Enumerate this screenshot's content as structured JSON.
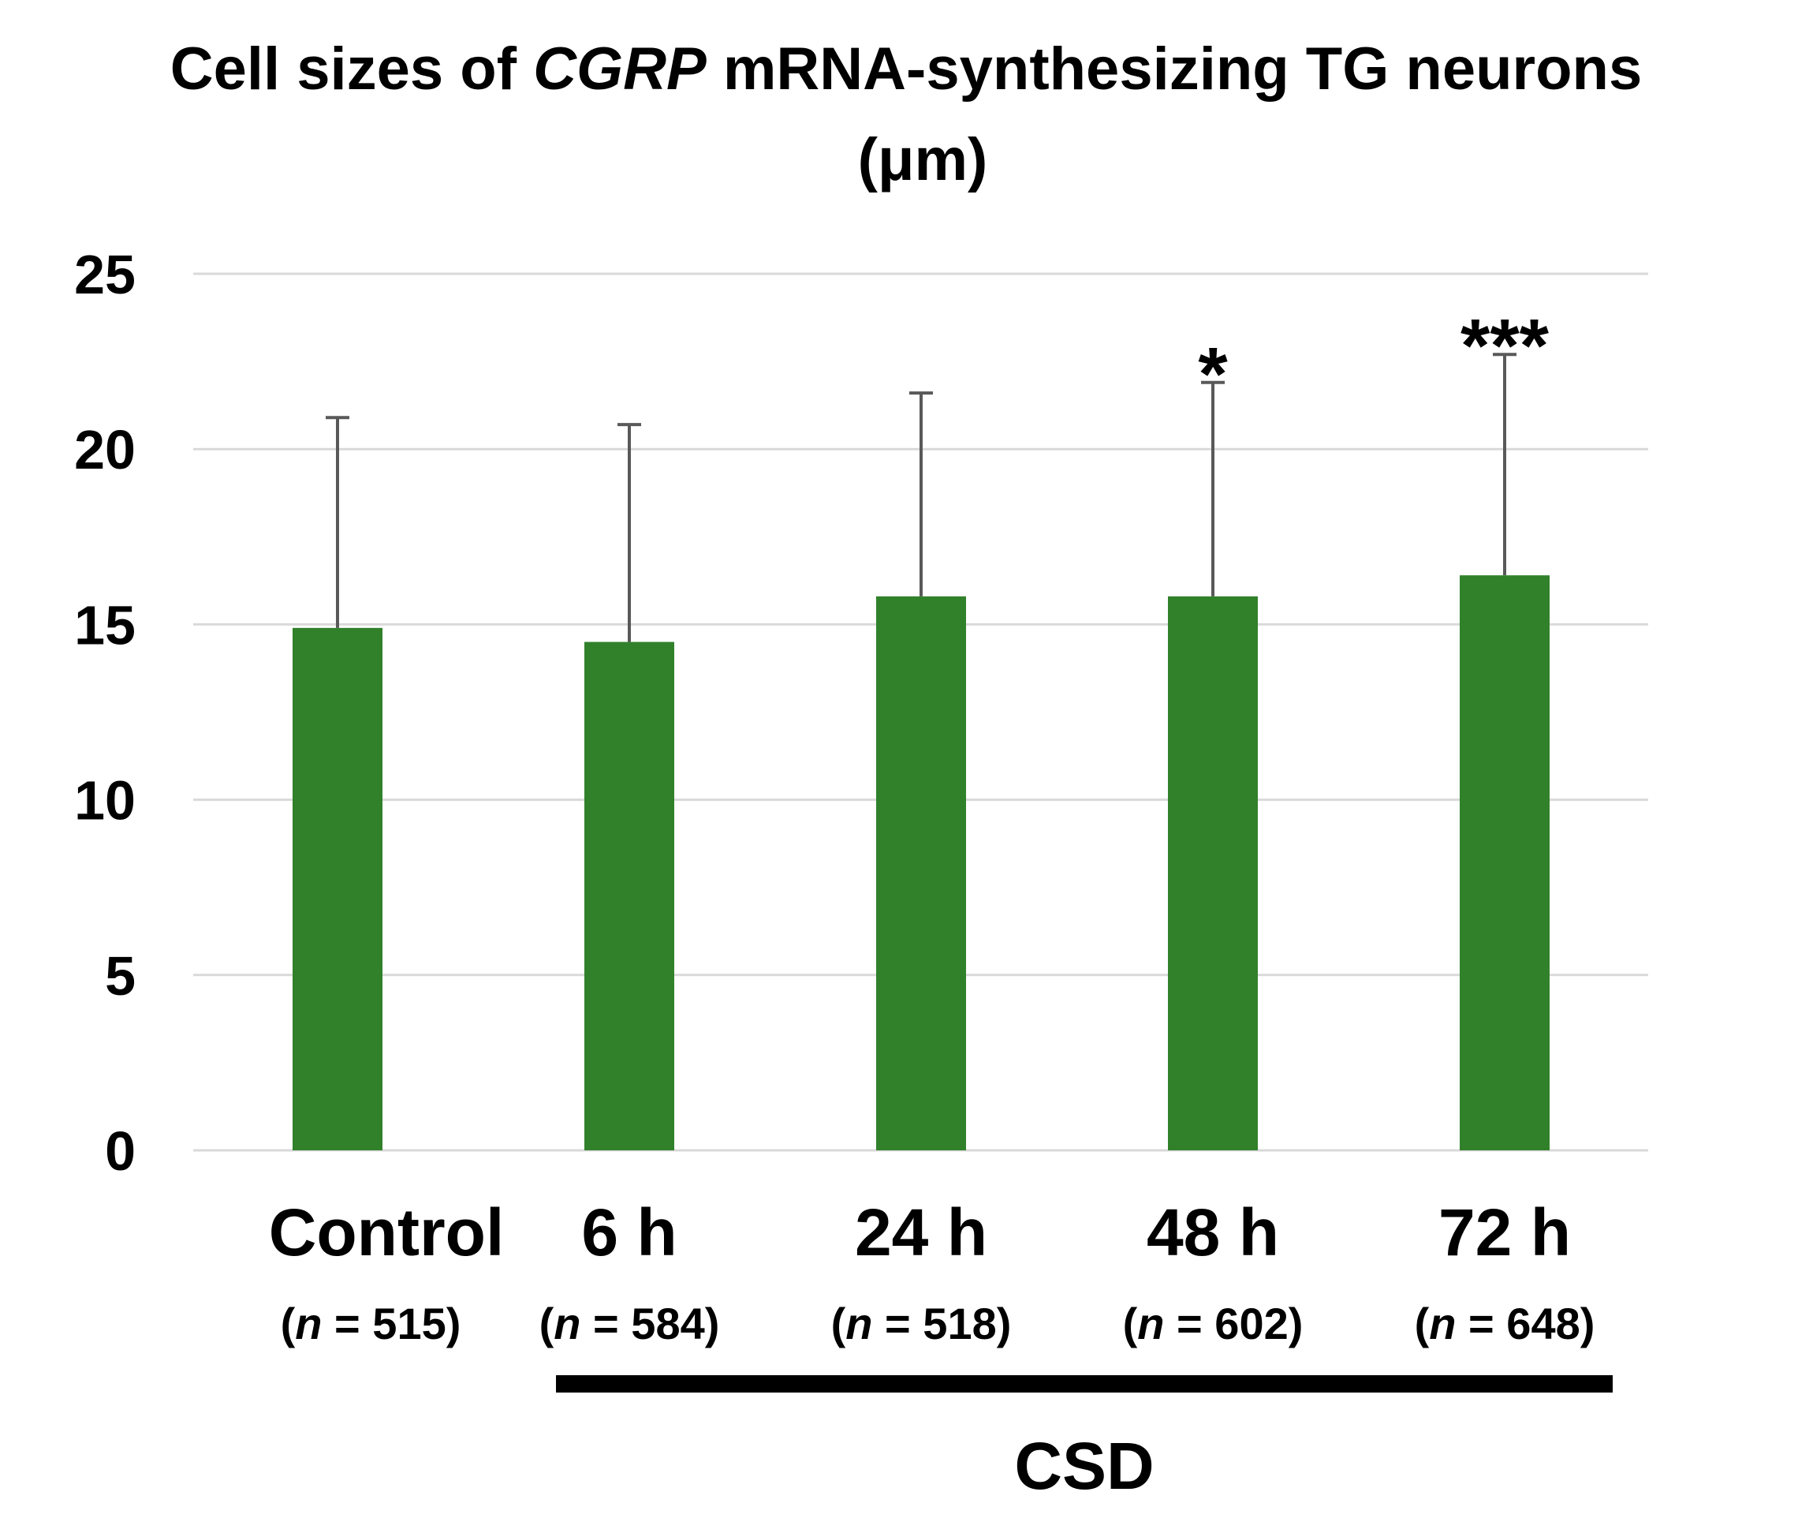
{
  "chart_data": {
    "type": "bar",
    "title": {
      "part1": "Cell sizes of ",
      "italic": "CGRP",
      "part2": " mRNA-synthesizing TG neurons",
      "line2": "(μm)"
    },
    "categories": [
      "Control",
      "6 h",
      "24 h",
      "48 h",
      "72 h"
    ],
    "n_labels": [
      {
        "open": "(",
        "n": "n",
        "rest": " = 515)"
      },
      {
        "open": "(",
        "n": "n",
        "rest": " = 584)"
      },
      {
        "open": "(",
        "n": "n",
        "rest": " = 518)"
      },
      {
        "open": "(",
        "n": "n",
        "rest": " = 602)"
      },
      {
        "open": "(",
        "n": "n",
        "rest": " = 648)"
      }
    ],
    "values": [
      14.9,
      14.5,
      15.8,
      15.8,
      16.4
    ],
    "error_upper": [
      20.9,
      20.7,
      21.6,
      21.9,
      22.7
    ],
    "significance": [
      "",
      "",
      "",
      "*",
      "***"
    ],
    "ylim": [
      0,
      25
    ],
    "yticks": [
      0,
      5,
      10,
      15,
      20,
      25
    ],
    "grid": true,
    "group_label": "CSD",
    "group_span": [
      "6 h",
      "72 h"
    ],
    "bar_color": "#31812b",
    "grid_color": "#d9d9d9",
    "error_color": "#595959"
  }
}
